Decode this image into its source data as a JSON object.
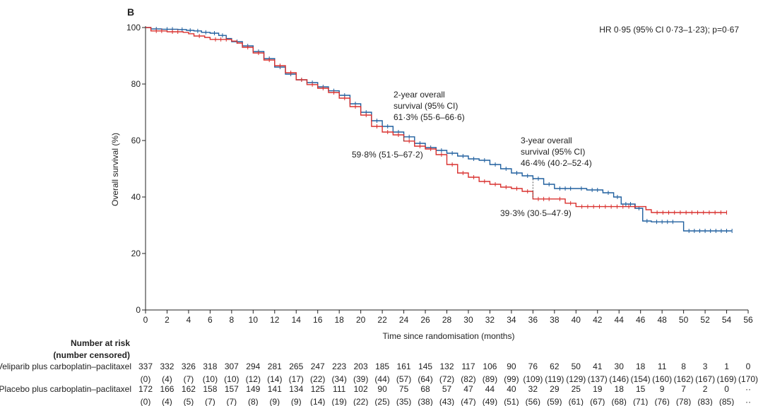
{
  "chart_data": {
    "type": "line",
    "panel_label": "B",
    "ylabel": "Overall survival (%)",
    "xlabel": "Time since randomisation (months)",
    "xlim": [
      0,
      56
    ],
    "ylim": [
      0,
      100
    ],
    "x_ticks": [
      0,
      2,
      4,
      6,
      8,
      10,
      12,
      14,
      16,
      18,
      20,
      22,
      24,
      26,
      28,
      30,
      32,
      34,
      36,
      38,
      40,
      42,
      44,
      46,
      48,
      50,
      52,
      54,
      56
    ],
    "y_ticks": [
      0,
      20,
      40,
      60,
      80,
      100
    ],
    "grid": false,
    "hr_text": "HR 0·95 (95% CI 0·73–1·23); p=0·67",
    "series": [
      {
        "color": "#1f5f9e",
        "points": [
          [
            0,
            100
          ],
          [
            0.5,
            99.5
          ],
          [
            1.5,
            99.4
          ],
          [
            3,
            99.3
          ],
          [
            3.8,
            99
          ],
          [
            4.5,
            98.8
          ],
          [
            5.2,
            98.3
          ],
          [
            6,
            98
          ],
          [
            6.8,
            97.2
          ],
          [
            7.5,
            96.1
          ],
          [
            8,
            95
          ],
          [
            9,
            93.5
          ],
          [
            10,
            91.5
          ],
          [
            11,
            89
          ],
          [
            12,
            86
          ],
          [
            13,
            83.5
          ],
          [
            14,
            81.5
          ],
          [
            15,
            80.5
          ],
          [
            16,
            79
          ],
          [
            17,
            77.6
          ],
          [
            18,
            76
          ],
          [
            19,
            73
          ],
          [
            20,
            70
          ],
          [
            21,
            67
          ],
          [
            22,
            65
          ],
          [
            23,
            63
          ],
          [
            24,
            61.3
          ],
          [
            25,
            59
          ],
          [
            26,
            57.5
          ],
          [
            27,
            56.5
          ],
          [
            28,
            55.5
          ],
          [
            29,
            54.5
          ],
          [
            30,
            53.5
          ],
          [
            31,
            53
          ],
          [
            32,
            51.5
          ],
          [
            33,
            50
          ],
          [
            34,
            48.5
          ],
          [
            35,
            47.5
          ],
          [
            36,
            46.5
          ],
          [
            37,
            44.5
          ],
          [
            38,
            43
          ],
          [
            40,
            43
          ],
          [
            41,
            42.5
          ],
          [
            42.5,
            41.5
          ],
          [
            43.5,
            40
          ],
          [
            44.2,
            39.5
          ],
          [
            44.2,
            37.5
          ],
          [
            45.5,
            36
          ],
          [
            46.2,
            36
          ],
          [
            46.2,
            31.5
          ],
          [
            47,
            31.2
          ],
          [
            49.5,
            31.2
          ],
          [
            50,
            28
          ],
          [
            54.5,
            28
          ]
        ]
      },
      {
        "color": "#d9302e",
        "points": [
          [
            0,
            100
          ],
          [
            0.5,
            98.8
          ],
          [
            2,
            98.5
          ],
          [
            3.5,
            98.3
          ],
          [
            4,
            97.8
          ],
          [
            4.5,
            97
          ],
          [
            5.5,
            96.5
          ],
          [
            6,
            95.8
          ],
          [
            8,
            95.2
          ],
          [
            8.5,
            94.5
          ],
          [
            9,
            93
          ],
          [
            10,
            91
          ],
          [
            11,
            88.5
          ],
          [
            12,
            86.5
          ],
          [
            13,
            84
          ],
          [
            14,
            81.5
          ],
          [
            15,
            79.8
          ],
          [
            16,
            78.5
          ],
          [
            17,
            77
          ],
          [
            18,
            75
          ],
          [
            19,
            72
          ],
          [
            20,
            69
          ],
          [
            21,
            65
          ],
          [
            22,
            63
          ],
          [
            23,
            62
          ],
          [
            24,
            59.8
          ],
          [
            25,
            58
          ],
          [
            26,
            57
          ],
          [
            27,
            55
          ],
          [
            28,
            51.5
          ],
          [
            29,
            48.5
          ],
          [
            30,
            47
          ],
          [
            31,
            45.5
          ],
          [
            32,
            44.5
          ],
          [
            33,
            43.5
          ],
          [
            34,
            43
          ],
          [
            35,
            42
          ],
          [
            36,
            39.3
          ],
          [
            38,
            39.3
          ],
          [
            39,
            37.8
          ],
          [
            40,
            36.6
          ],
          [
            46,
            36.6
          ],
          [
            46.5,
            35.5
          ],
          [
            47,
            34.5
          ],
          [
            54,
            34.5
          ]
        ]
      }
    ],
    "annotations": [
      {
        "lines": [
          "2-year overall",
          "survival (95% CI)",
          "61·3% (55·6–66·6)"
        ]
      },
      {
        "lines": [
          "59·8% (51·5–67·2)"
        ]
      },
      {
        "lines": [
          "3-year overall",
          "survival (95% CI)",
          "46·4% (40·2–52·4)"
        ]
      },
      {
        "lines": [
          "39·3% (30·5–47·9)"
        ]
      }
    ],
    "risk_table": {
      "header": [
        "Number at risk",
        "(number censored)"
      ],
      "rows": [
        {
          "label": "Veliparib plus carboplatin–paclitaxel",
          "at_risk": [
            "337",
            "332",
            "326",
            "318",
            "307",
            "294",
            "281",
            "265",
            "247",
            "223",
            "203",
            "185",
            "161",
            "145",
            "132",
            "117",
            "106",
            "90",
            "76",
            "62",
            "50",
            "41",
            "30",
            "18",
            "11",
            "8",
            "3",
            "1",
            "0"
          ],
          "censored": [
            "(0)",
            "(4)",
            "(7)",
            "(10)",
            "(10)",
            "(12)",
            "(14)",
            "(17)",
            "(22)",
            "(34)",
            "(39)",
            "(44)",
            "(57)",
            "(64)",
            "(72)",
            "(82)",
            "(89)",
            "(99)",
            "(109)",
            "(119)",
            "(129)",
            "(137)",
            "(146)",
            "(154)",
            "(160)",
            "(162)",
            "(167)",
            "(169)",
            "(170)"
          ]
        },
        {
          "label": "Placebo plus carboplatin–paclitaxel",
          "at_risk": [
            "172",
            "166",
            "162",
            "158",
            "157",
            "149",
            "141",
            "134",
            "125",
            "111",
            "102",
            "90",
            "75",
            "68",
            "57",
            "47",
            "44",
            "40",
            "32",
            "29",
            "25",
            "19",
            "18",
            "15",
            "9",
            "7",
            "2",
            "0",
            "··"
          ],
          "censored": [
            "(0)",
            "(4)",
            "(5)",
            "(7)",
            "(7)",
            "(8)",
            "(9)",
            "(9)",
            "(14)",
            "(19)",
            "(22)",
            "(25)",
            "(35)",
            "(38)",
            "(43)",
            "(47)",
            "(49)",
            "(51)",
            "(56)",
            "(59)",
            "(61)",
            "(67)",
            "(68)",
            "(71)",
            "(76)",
            "(78)",
            "(83)",
            "(85)",
            "··"
          ]
        }
      ]
    }
  }
}
